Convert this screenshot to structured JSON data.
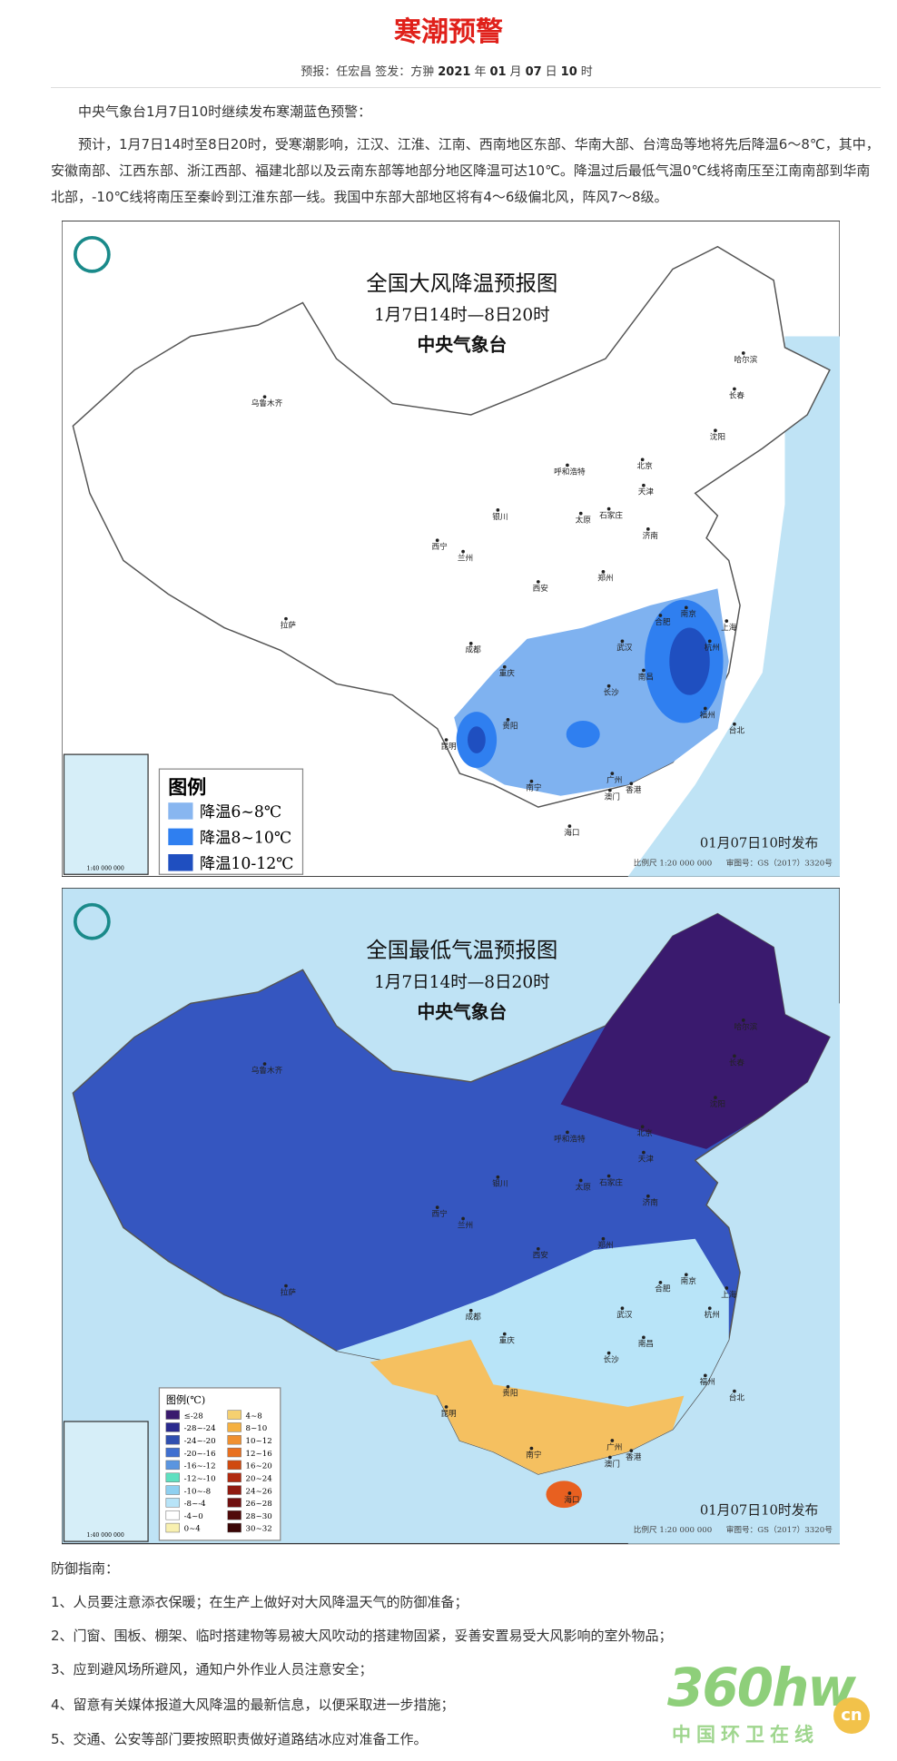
{
  "header": {
    "title": "寒潮预警",
    "meta": [
      "预报：任宏昌",
      "签发：方翀",
      "2021",
      "年",
      "01",
      "月",
      "07",
      "日",
      "10",
      "时"
    ]
  },
  "paragraphs": [
    "中央气象台1月7日10时继续发布寒潮蓝色预警：",
    "预计，1月7日14时至8日20时，受寒潮影响，江汉、江淮、江南、西南地区东部、华南大部、台湾岛等地将先后降温6～8℃，其中，安徽南部、江西东部、浙江西部、福建北部以及云南东部等地部分地区降温可达10℃。降温过后最低气温0℃线将南压至江南南部到华南北部，-10℃线将南压至秦岭到江淮东部一线。我国中东部大部地区将有4～6级偏北风，阵风7～8级。"
  ],
  "maps": [
    {
      "title": "全国大风降温预报图",
      "period": "1月7日14时—8日20时",
      "issuer": "中央气象台",
      "legend_title": "图例",
      "legend": [
        {
          "label": "降温6~8℃",
          "color": "#88b6f0"
        },
        {
          "label": "降温8~10℃",
          "color": "#2f7ff0"
        },
        {
          "label": "降温10-12℃",
          "color": "#1f4fc0"
        }
      ],
      "issued": "01月07日10时发布",
      "scale": "比例尺 1:20 000 000",
      "review": "审图号：GS（2017）3320号",
      "inset_scale": "1:40 000 000"
    },
    {
      "title": "全国最低气温预报图",
      "period": "1月7日14时—8日20时",
      "issuer": "中央气象台",
      "legend_title": "图例(℃)",
      "legend": [
        {
          "label": "≤-28",
          "color": "#3a1a6e"
        },
        {
          "label": "-28~-24",
          "color": "#2a2a8e"
        },
        {
          "label": "-24~-20",
          "color": "#2f4fb0"
        },
        {
          "label": "-20~-16",
          "color": "#3f6fd0"
        },
        {
          "label": "-16~-12",
          "color": "#5a95e0"
        },
        {
          "label": "-12~-10",
          "color": "#5fe0c0"
        },
        {
          "label": "-10~-8",
          "color": "#8fd0f0"
        },
        {
          "label": "-8~-4",
          "color": "#b8e4f8"
        },
        {
          "label": "-4~0",
          "color": "#ffffff"
        },
        {
          "label": "0~4",
          "color": "#f8f0b0"
        },
        {
          "label": "4~8",
          "color": "#f5d070"
        },
        {
          "label": "8~10",
          "color": "#f5b040"
        },
        {
          "label": "10~12",
          "color": "#f09030"
        },
        {
          "label": "12~16",
          "color": "#e87020"
        },
        {
          "label": "16~20",
          "color": "#d04a10"
        },
        {
          "label": "20~24",
          "color": "#b02a10"
        },
        {
          "label": "24~26",
          "color": "#901a10"
        },
        {
          "label": "26~28",
          "color": "#701010"
        },
        {
          "label": "28~30",
          "color": "#500a0a"
        },
        {
          "label": "30~32",
          "color": "#3a0505"
        }
      ],
      "issued": "01月07日10时发布",
      "scale": "比例尺 1:20 000 000",
      "review": "审图号：GS（2017）3320号",
      "inset_scale": "1:40 000 000"
    }
  ],
  "cities": [
    "乌鲁木齐",
    "哈尔滨",
    "长春",
    "沈阳",
    "北京",
    "天津",
    "呼和浩特",
    "石家庄",
    "太原",
    "济南",
    "银川",
    "西宁",
    "兰州",
    "西安",
    "郑州",
    "合肥",
    "南京",
    "上海",
    "杭州",
    "武汉",
    "成都",
    "重庆",
    "长沙",
    "南昌",
    "福州",
    "台北",
    "贵阳",
    "昆明",
    "南宁",
    "广州",
    "香港",
    "澳门",
    "海口",
    "拉萨"
  ],
  "guide": {
    "title": "防御指南：",
    "items": [
      "1、人员要注意添衣保暖；在生产上做好对大风降温天气的防御准备；",
      "2、门窗、围板、棚架、临时搭建物等易被大风吹动的搭建物固紧，妥善安置易受大风影响的室外物品；",
      "3、应到避风场所避风，通知户外作业人员注意安全；",
      "4、留意有关媒体报道大风降温的最新信息，以便采取进一步措施；",
      "5、交通、公安等部门要按照职责做好道路结冰应对准备工作。"
    ]
  },
  "watermark": {
    "brand": "360hw",
    "tagline": "中国环卫在线",
    "cn": "cn"
  }
}
